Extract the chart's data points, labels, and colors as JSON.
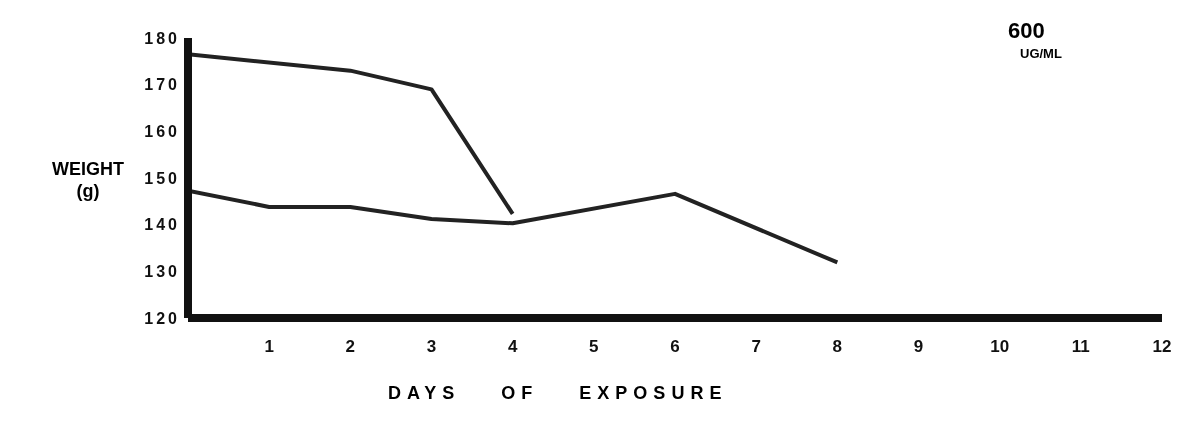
{
  "chart_data": {
    "type": "line",
    "xlabel": "DAYS OF EXPOSURE",
    "ylabel": "WEIGHT (g)",
    "annotations": [
      "600",
      "UG/ML"
    ],
    "series": [
      {
        "color": "#222222",
        "x": [
          0,
          2,
          3,
          4
        ],
        "values": [
          176.5,
          173,
          169,
          142.3
        ]
      },
      {
        "color": "#222222",
        "x": [
          0,
          1,
          2,
          3,
          4,
          6,
          8
        ],
        "values": [
          147.3,
          143.8,
          143.8,
          141.2,
          140.3,
          146.6,
          131.9
        ]
      }
    ],
    "xlim": [
      0,
      12
    ],
    "xticks": [
      1,
      2,
      3,
      4,
      5,
      6,
      7,
      8,
      9,
      10,
      11,
      12
    ],
    "ylim": [
      120,
      180
    ],
    "yticks": [
      120,
      130,
      140,
      150,
      160,
      170,
      180
    ],
    "grid": false,
    "legend": false
  }
}
